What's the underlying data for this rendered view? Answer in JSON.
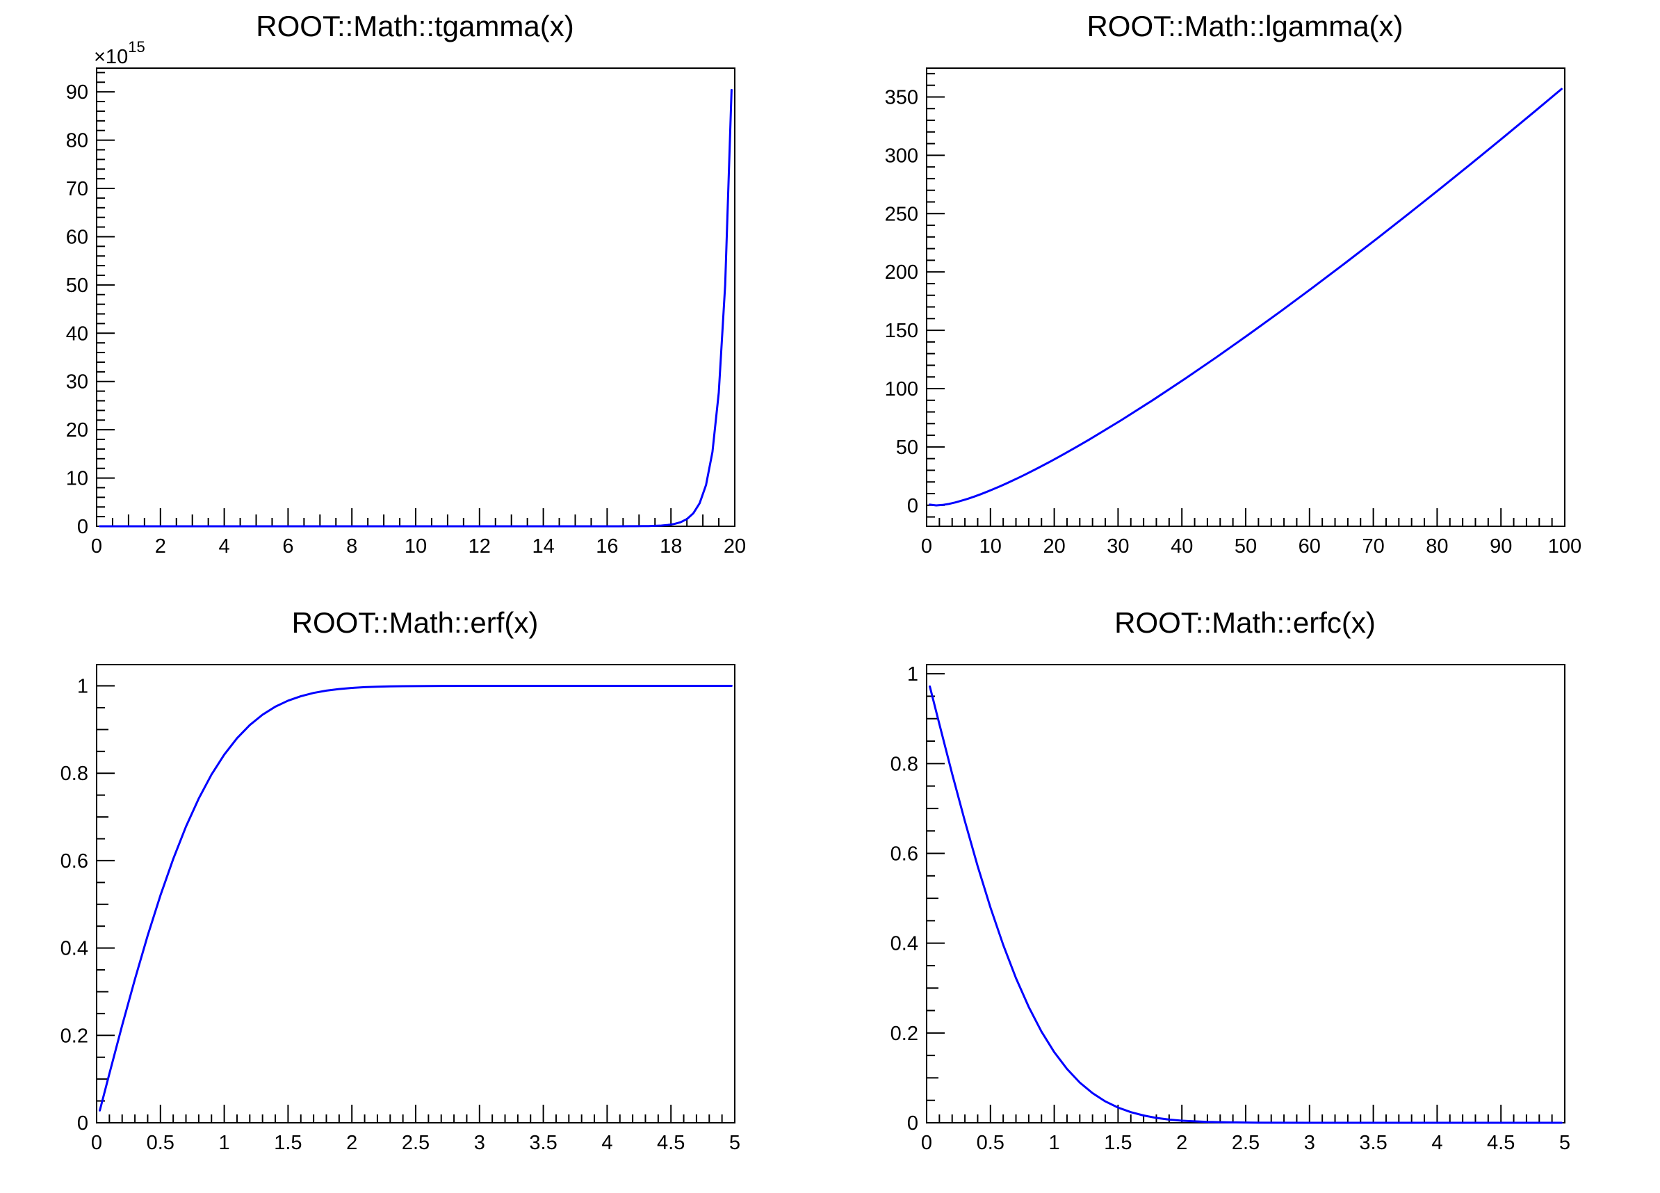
{
  "canvas": {
    "background": "#ffffff",
    "frame_color": "#000000",
    "curve_color": "#0000ff"
  },
  "chart_data": [
    {
      "name": "tgamma",
      "type": "line",
      "title": "ROOT::Math::tgamma(x)",
      "line_color": "#0000ff",
      "grid": false,
      "legend": "none",
      "xlim": [
        0,
        20
      ],
      "ylim": [
        0,
        94.92
      ],
      "y_scale_exponent": {
        "text": "×10",
        "sup": "15"
      },
      "x_ticks": {
        "values": [
          0,
          2,
          4,
          6,
          8,
          10,
          12,
          14,
          16,
          18,
          20
        ],
        "labels": [
          "0",
          "2",
          "4",
          "6",
          "8",
          "10",
          "12",
          "14",
          "16",
          "18",
          "20"
        ],
        "subdiv": 4
      },
      "y_ticks": {
        "values": [
          0,
          10,
          20,
          30,
          40,
          50,
          60,
          70,
          80,
          90
        ],
        "labels": [
          "0",
          "10",
          "20",
          "30",
          "40",
          "50",
          "60",
          "70",
          "80",
          "90"
        ],
        "subdiv": 5
      },
      "points": [
        [
          0.1,
          0
        ],
        [
          1,
          0
        ],
        [
          2,
          0
        ],
        [
          3,
          0
        ],
        [
          4,
          0
        ],
        [
          5,
          0
        ],
        [
          6,
          0
        ],
        [
          7,
          0
        ],
        [
          8,
          0
        ],
        [
          9,
          0
        ],
        [
          10,
          0
        ],
        [
          11,
          0
        ],
        [
          12,
          0
        ],
        [
          13,
          0
        ],
        [
          14,
          0
        ],
        [
          15,
          0
        ],
        [
          15.9,
          0.0002
        ],
        [
          16.3,
          0.001
        ],
        [
          16.7,
          0.008
        ],
        [
          16.9,
          0.012
        ],
        [
          17.1,
          0.028
        ],
        [
          17.3,
          0.049
        ],
        [
          17.5,
          0.086
        ],
        [
          17.7,
          0.151
        ],
        [
          17.9,
          0.267
        ],
        [
          18.1,
          0.47
        ],
        [
          18.3,
          0.84
        ],
        [
          18.5,
          1.5
        ],
        [
          18.7,
          2.68
        ],
        [
          18.9,
          4.78
        ],
        [
          19.1,
          8.57
        ],
        [
          19.3,
          15.4
        ],
        [
          19.5,
          27.7
        ],
        [
          19.7,
          50.0
        ],
        [
          19.9,
          90.4
        ]
      ]
    },
    {
      "name": "lgamma",
      "type": "line",
      "title": "ROOT::Math::lgamma(x)",
      "line_color": "#0000ff",
      "grid": false,
      "legend": "none",
      "xlim": [
        0,
        100
      ],
      "ylim": [
        -18.0,
        374.7
      ],
      "y_scale_exponent": null,
      "x_ticks": {
        "values": [
          0,
          10,
          20,
          30,
          40,
          50,
          60,
          70,
          80,
          90,
          100
        ],
        "labels": [
          "0",
          "10",
          "20",
          "30",
          "40",
          "50",
          "60",
          "70",
          "80",
          "90",
          "100"
        ],
        "subdiv": 5
      },
      "y_ticks": {
        "values": [
          0,
          50,
          100,
          150,
          200,
          250,
          300,
          350
        ],
        "labels": [
          "0",
          "50",
          "100",
          "150",
          "200",
          "250",
          "300",
          "350"
        ],
        "subdiv": 5
      },
      "points": [
        [
          0.5,
          0.57
        ],
        [
          1.5,
          -0.12
        ],
        [
          2.5,
          0.28
        ],
        [
          3.5,
          1.2
        ],
        [
          4.5,
          2.45
        ],
        [
          5.5,
          3.96
        ],
        [
          6.5,
          5.66
        ],
        [
          7.5,
          7.53
        ],
        [
          8.5,
          9.55
        ],
        [
          9.5,
          11.69
        ],
        [
          10.5,
          13.94
        ],
        [
          11.5,
          16.29
        ],
        [
          12.5,
          18.73
        ],
        [
          13.5,
          21.26
        ],
        [
          14.5,
          23.86
        ],
        [
          15.5,
          26.54
        ],
        [
          17.5,
          32.08
        ],
        [
          19.5,
          37.86
        ],
        [
          21.5,
          43.85
        ],
        [
          23.5,
          50.03
        ],
        [
          25.5,
          56.39
        ],
        [
          30.5,
          72.95
        ],
        [
          35.5,
          90.36
        ],
        [
          40.5,
          108.47
        ],
        [
          45.5,
          127.22
        ],
        [
          50.5,
          146.52
        ],
        [
          55.5,
          166.32
        ],
        [
          60.5,
          186.58
        ],
        [
          65.5,
          207.25
        ],
        [
          70.5,
          228.31
        ],
        [
          75.5,
          249.73
        ],
        [
          80.5,
          271.48
        ],
        [
          85.5,
          293.54
        ],
        [
          90.5,
          315.9
        ],
        [
          95.5,
          338.54
        ],
        [
          99.5,
          356.84
        ]
      ]
    },
    {
      "name": "erf",
      "type": "line",
      "title": "ROOT::Math::erf(x)",
      "line_color": "#0000ff",
      "grid": false,
      "legend": "none",
      "xlim": [
        0,
        5
      ],
      "ylim": [
        0,
        1.0486
      ],
      "y_scale_exponent": null,
      "x_ticks": {
        "values": [
          0,
          0.5,
          1,
          1.5,
          2,
          2.5,
          3,
          3.5,
          4,
          4.5,
          5
        ],
        "labels": [
          "0",
          "0.5",
          "1",
          "1.5",
          "2",
          "2.5",
          "3",
          "3.5",
          "4",
          "4.5",
          "5"
        ],
        "subdiv": 5
      },
      "y_ticks": {
        "values": [
          0,
          0.2,
          0.4,
          0.6,
          0.8,
          1
        ],
        "labels": [
          "0",
          "0.2",
          "0.4",
          "0.6",
          "0.8",
          "1"
        ],
        "subdiv": 4
      },
      "points": [
        [
          0.025,
          0.0282
        ],
        [
          0.1,
          0.1125
        ],
        [
          0.2,
          0.2227
        ],
        [
          0.3,
          0.3286
        ],
        [
          0.4,
          0.4284
        ],
        [
          0.5,
          0.5205
        ],
        [
          0.6,
          0.6039
        ],
        [
          0.7,
          0.6778
        ],
        [
          0.8,
          0.7421
        ],
        [
          0.9,
          0.7969
        ],
        [
          1.0,
          0.8427
        ],
        [
          1.1,
          0.8802
        ],
        [
          1.2,
          0.9103
        ],
        [
          1.3,
          0.934
        ],
        [
          1.4,
          0.9523
        ],
        [
          1.5,
          0.9661
        ],
        [
          1.6,
          0.9763
        ],
        [
          1.7,
          0.9838
        ],
        [
          1.8,
          0.9891
        ],
        [
          1.9,
          0.9928
        ],
        [
          2.0,
          0.9953
        ],
        [
          2.1,
          0.997
        ],
        [
          2.2,
          0.9981
        ],
        [
          2.3,
          0.9989
        ],
        [
          2.4,
          0.9993
        ],
        [
          2.6,
          0.9998
        ],
        [
          2.8,
          0.9999
        ],
        [
          3.0,
          1.0
        ],
        [
          3.5,
          1.0
        ],
        [
          4.0,
          1.0
        ],
        [
          4.5,
          1.0
        ],
        [
          4.975,
          1.0
        ]
      ]
    },
    {
      "name": "erfc",
      "type": "line",
      "title": "ROOT::Math::erfc(x)",
      "line_color": "#0000ff",
      "grid": false,
      "legend": "none",
      "xlim": [
        0,
        5
      ],
      "ylim": [
        0,
        1.0204
      ],
      "y_scale_exponent": null,
      "x_ticks": {
        "values": [
          0,
          0.5,
          1,
          1.5,
          2,
          2.5,
          3,
          3.5,
          4,
          4.5,
          5
        ],
        "labels": [
          "0",
          "0.5",
          "1",
          "1.5",
          "2",
          "2.5",
          "3",
          "3.5",
          "4",
          "4.5",
          "5"
        ],
        "subdiv": 5
      },
      "y_ticks": {
        "values": [
          0,
          0.2,
          0.4,
          0.6,
          0.8,
          1
        ],
        "labels": [
          "0",
          "0.2",
          "0.4",
          "0.6",
          "0.8",
          "1"
        ],
        "subdiv": 4
      },
      "points": [
        [
          0.025,
          0.9718
        ],
        [
          0.1,
          0.8875
        ],
        [
          0.2,
          0.7773
        ],
        [
          0.3,
          0.6714
        ],
        [
          0.4,
          0.5716
        ],
        [
          0.5,
          0.4795
        ],
        [
          0.6,
          0.3961
        ],
        [
          0.7,
          0.3222
        ],
        [
          0.8,
          0.2579
        ],
        [
          0.9,
          0.2031
        ],
        [
          1.0,
          0.1573
        ],
        [
          1.1,
          0.1198
        ],
        [
          1.2,
          0.0897
        ],
        [
          1.3,
          0.066
        ],
        [
          1.4,
          0.0477
        ],
        [
          1.5,
          0.0339
        ],
        [
          1.6,
          0.0237
        ],
        [
          1.7,
          0.0162
        ],
        [
          1.8,
          0.0109
        ],
        [
          1.9,
          0.0072
        ],
        [
          2.0,
          0.0047
        ],
        [
          2.2,
          0.0019
        ],
        [
          2.4,
          0.0007
        ],
        [
          2.6,
          0.0002
        ],
        [
          3.0,
          0.0
        ],
        [
          3.5,
          0.0
        ],
        [
          4.0,
          0.0
        ],
        [
          4.5,
          0.0
        ],
        [
          4.975,
          0.0
        ]
      ]
    }
  ]
}
